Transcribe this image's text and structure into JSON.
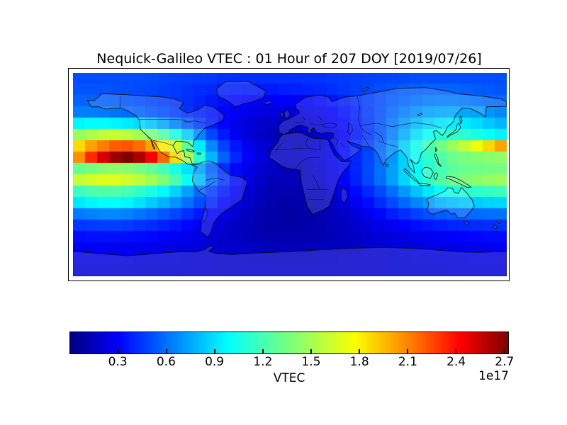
{
  "title": "Nequick-Galileo VTEC : 01 Hour of 207 DOY [2019/07/26]",
  "colors": {
    "background": "#ffffff",
    "frame": "#000000",
    "text": "#000000"
  },
  "colorbar": {
    "label": "VTEC",
    "offset_text": "1e17",
    "ticks": [
      0.3,
      0.6,
      0.9,
      1.2,
      1.5,
      1.8,
      2.1,
      2.4,
      2.7
    ],
    "min": 0,
    "max": 2.7,
    "colormap": "jet",
    "colormap_stops": [
      [
        0.0,
        0,
        0,
        128
      ],
      [
        0.11,
        0,
        0,
        255
      ],
      [
        0.36,
        0,
        255,
        255
      ],
      [
        0.5,
        122,
        255,
        125
      ],
      [
        0.65,
        250,
        255,
        0
      ],
      [
        0.78,
        255,
        123,
        0
      ],
      [
        0.89,
        255,
        0,
        0
      ],
      [
        1.0,
        128,
        0,
        0
      ]
    ]
  },
  "chart_data": {
    "type": "heatmap",
    "title": "Nequick-Galileo VTEC : 01 Hour of 207 DOY [2019/07/26]",
    "colorbar_label": "VTEC",
    "units_scale": "1e17",
    "projection": "equirectangular world map with coastlines",
    "lon_range": [
      -180,
      180
    ],
    "lat_range": [
      90,
      -90
    ],
    "lon_step_deg": 10,
    "lat_step_deg": 10,
    "vmin": 0,
    "vmax": 2.7,
    "colormap": "jet",
    "values": [
      [
        0.5,
        0.5,
        0.5,
        0.5,
        0.5,
        0.5,
        0.49,
        0.48,
        0.47,
        0.46,
        0.45,
        0.44,
        0.43,
        0.42,
        0.42,
        0.42,
        0.42,
        0.42,
        0.42,
        0.43,
        0.43,
        0.44,
        0.45,
        0.46,
        0.47,
        0.48,
        0.48,
        0.49,
        0.5,
        0.5,
        0.5,
        0.5,
        0.5,
        0.5,
        0.5,
        0.5
      ],
      [
        0.52,
        0.52,
        0.52,
        0.51,
        0.5,
        0.49,
        0.48,
        0.46,
        0.45,
        0.43,
        0.41,
        0.4,
        0.38,
        0.37,
        0.36,
        0.36,
        0.36,
        0.37,
        0.38,
        0.39,
        0.4,
        0.42,
        0.44,
        0.46,
        0.48,
        0.5,
        0.52,
        0.54,
        0.55,
        0.56,
        0.56,
        0.56,
        0.55,
        0.54,
        0.53,
        0.52
      ],
      [
        0.56,
        0.56,
        0.55,
        0.54,
        0.52,
        0.5,
        0.48,
        0.46,
        0.44,
        0.42,
        0.39,
        0.36,
        0.33,
        0.31,
        0.3,
        0.29,
        0.28,
        0.28,
        0.29,
        0.3,
        0.32,
        0.35,
        0.38,
        0.42,
        0.46,
        0.5,
        0.54,
        0.57,
        0.6,
        0.62,
        0.63,
        0.63,
        0.62,
        0.6,
        0.58,
        0.57
      ],
      [
        0.63,
        0.63,
        0.62,
        0.6,
        0.58,
        0.56,
        0.53,
        0.5,
        0.47,
        0.43,
        0.39,
        0.35,
        0.31,
        0.28,
        0.25,
        0.23,
        0.22,
        0.22,
        0.22,
        0.24,
        0.26,
        0.3,
        0.34,
        0.39,
        0.45,
        0.51,
        0.57,
        0.63,
        0.68,
        0.72,
        0.74,
        0.75,
        0.74,
        0.72,
        0.69,
        0.66
      ],
      [
        0.95,
        0.97,
        0.97,
        0.95,
        0.92,
        0.88,
        0.82,
        0.74,
        0.64,
        0.54,
        0.45,
        0.37,
        0.3,
        0.25,
        0.21,
        0.18,
        0.17,
        0.16,
        0.17,
        0.19,
        0.22,
        0.26,
        0.31,
        0.37,
        0.44,
        0.52,
        0.61,
        0.7,
        0.79,
        0.86,
        0.91,
        0.93,
        0.92,
        0.88,
        0.83,
        0.78
      ],
      [
        1.45,
        1.52,
        1.58,
        1.6,
        1.56,
        1.48,
        1.36,
        1.22,
        1.05,
        0.85,
        0.65,
        0.48,
        0.36,
        0.27,
        0.21,
        0.17,
        0.14,
        0.13,
        0.13,
        0.15,
        0.18,
        0.22,
        0.28,
        0.35,
        0.43,
        0.52,
        0.63,
        0.76,
        0.89,
        1.0,
        1.08,
        1.12,
        1.1,
        1.05,
        0.99,
        0.94
      ],
      [
        1.85,
        2.0,
        2.1,
        2.18,
        2.2,
        2.14,
        2.0,
        1.8,
        1.62,
        1.25,
        0.92,
        0.66,
        0.47,
        0.35,
        0.26,
        0.2,
        0.17,
        0.15,
        0.15,
        0.17,
        0.2,
        0.25,
        0.32,
        0.4,
        0.46,
        0.56,
        0.68,
        0.85,
        1.02,
        1.18,
        1.32,
        1.45,
        1.58,
        1.72,
        1.86,
        2.0
      ],
      [
        2.05,
        2.3,
        2.5,
        2.63,
        2.7,
        2.6,
        2.42,
        2.16,
        1.85,
        1.48,
        1.1,
        0.78,
        0.55,
        0.4,
        0.29,
        0.22,
        0.18,
        0.16,
        0.16,
        0.18,
        0.21,
        0.26,
        0.33,
        0.4,
        0.48,
        0.58,
        0.7,
        0.85,
        1.0,
        1.12,
        1.22,
        1.3,
        1.35,
        1.38,
        1.4,
        1.42
      ],
      [
        1.3,
        1.35,
        1.4,
        1.42,
        1.4,
        1.35,
        1.28,
        1.18,
        1.05,
        0.9,
        0.72,
        0.55,
        0.42,
        0.31,
        0.24,
        0.19,
        0.16,
        0.14,
        0.14,
        0.16,
        0.19,
        0.24,
        0.31,
        0.39,
        0.49,
        0.6,
        0.72,
        0.85,
        0.98,
        1.1,
        1.19,
        1.26,
        1.3,
        1.32,
        1.33,
        1.34
      ],
      [
        1.58,
        1.63,
        1.66,
        1.66,
        1.62,
        1.56,
        1.48,
        1.36,
        1.2,
        1.0,
        0.8,
        0.6,
        0.45,
        0.33,
        0.24,
        0.18,
        0.14,
        0.13,
        0.13,
        0.15,
        0.18,
        0.23,
        0.3,
        0.38,
        0.48,
        0.59,
        0.72,
        0.86,
        1.0,
        1.12,
        1.22,
        1.3,
        1.36,
        1.4,
        1.44,
        1.46
      ],
      [
        1.15,
        1.2,
        1.22,
        1.22,
        1.18,
        1.12,
        1.05,
        0.96,
        0.85,
        0.72,
        0.58,
        0.46,
        0.36,
        0.27,
        0.2,
        0.15,
        0.12,
        0.11,
        0.11,
        0.13,
        0.15,
        0.19,
        0.25,
        0.32,
        0.4,
        0.49,
        0.59,
        0.7,
        0.81,
        0.91,
        0.99,
        1.05,
        1.09,
        1.12,
        1.14,
        1.16
      ],
      [
        0.92,
        0.95,
        0.98,
        0.98,
        0.95,
        0.9,
        0.84,
        0.77,
        0.69,
        0.6,
        0.5,
        0.4,
        0.31,
        0.24,
        0.18,
        0.14,
        0.11,
        0.1,
        0.1,
        0.11,
        0.13,
        0.16,
        0.21,
        0.27,
        0.33,
        0.41,
        0.49,
        0.57,
        0.65,
        0.71,
        0.77,
        0.8,
        0.83,
        0.84,
        0.86,
        0.87
      ],
      [
        0.62,
        0.64,
        0.66,
        0.66,
        0.64,
        0.61,
        0.57,
        0.53,
        0.48,
        0.42,
        0.36,
        0.3,
        0.24,
        0.19,
        0.15,
        0.12,
        0.1,
        0.09,
        0.09,
        0.1,
        0.12,
        0.14,
        0.17,
        0.21,
        0.26,
        0.31,
        0.37,
        0.42,
        0.47,
        0.51,
        0.54,
        0.56,
        0.57,
        0.58,
        0.59,
        0.6
      ],
      [
        0.44,
        0.45,
        0.46,
        0.46,
        0.45,
        0.43,
        0.41,
        0.38,
        0.35,
        0.31,
        0.27,
        0.23,
        0.19,
        0.16,
        0.13,
        0.11,
        0.1,
        0.09,
        0.09,
        0.1,
        0.11,
        0.13,
        0.15,
        0.18,
        0.21,
        0.24,
        0.27,
        0.3,
        0.33,
        0.35,
        0.37,
        0.39,
        0.4,
        0.41,
        0.42,
        0.43
      ],
      [
        0.33,
        0.34,
        0.34,
        0.34,
        0.33,
        0.32,
        0.31,
        0.29,
        0.27,
        0.25,
        0.23,
        0.2,
        0.18,
        0.16,
        0.14,
        0.12,
        0.11,
        0.11,
        0.11,
        0.11,
        0.12,
        0.13,
        0.15,
        0.16,
        0.18,
        0.2,
        0.22,
        0.23,
        0.25,
        0.26,
        0.28,
        0.29,
        0.3,
        0.31,
        0.32,
        0.32
      ],
      [
        0.27,
        0.27,
        0.27,
        0.27,
        0.26,
        0.26,
        0.25,
        0.24,
        0.23,
        0.22,
        0.21,
        0.19,
        0.18,
        0.17,
        0.16,
        0.15,
        0.14,
        0.14,
        0.14,
        0.14,
        0.15,
        0.15,
        0.16,
        0.17,
        0.18,
        0.19,
        0.2,
        0.21,
        0.22,
        0.23,
        0.24,
        0.24,
        0.25,
        0.25,
        0.26,
        0.26
      ],
      [
        0.23,
        0.23,
        0.23,
        0.23,
        0.23,
        0.22,
        0.22,
        0.21,
        0.21,
        0.2,
        0.2,
        0.19,
        0.18,
        0.18,
        0.17,
        0.17,
        0.16,
        0.16,
        0.16,
        0.16,
        0.17,
        0.17,
        0.18,
        0.18,
        0.19,
        0.19,
        0.2,
        0.2,
        0.21,
        0.21,
        0.22,
        0.22,
        0.22,
        0.23,
        0.23,
        0.23
      ],
      [
        0.21,
        0.21,
        0.21,
        0.21,
        0.21,
        0.2,
        0.2,
        0.2,
        0.2,
        0.19,
        0.19,
        0.19,
        0.18,
        0.18,
        0.18,
        0.18,
        0.18,
        0.18,
        0.18,
        0.18,
        0.18,
        0.18,
        0.19,
        0.19,
        0.19,
        0.19,
        0.2,
        0.2,
        0.2,
        0.2,
        0.2,
        0.21,
        0.21,
        0.21,
        0.21,
        0.21
      ]
    ]
  }
}
